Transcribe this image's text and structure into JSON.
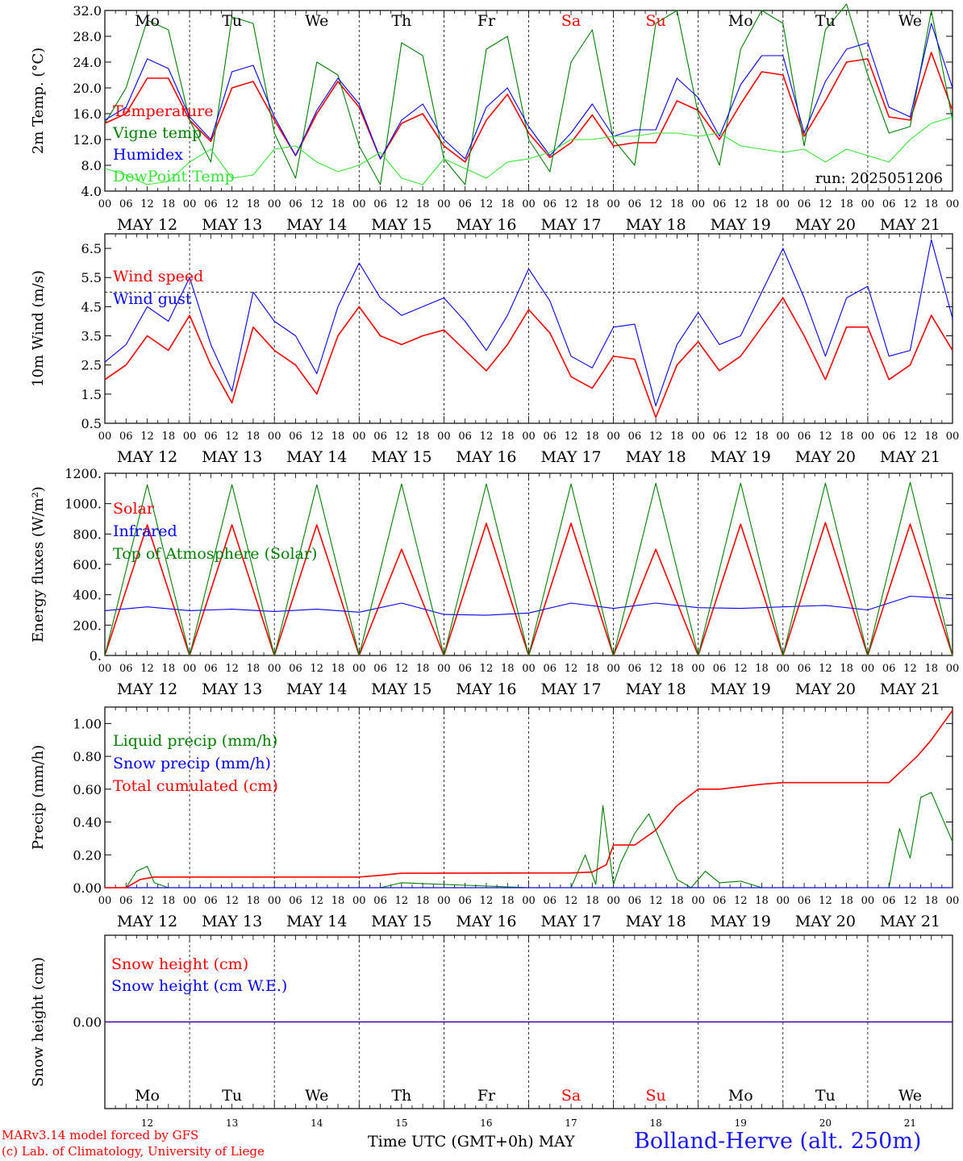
{
  "days": {
    "names": [
      "Mo",
      "Tu",
      "We",
      "Th",
      "Fr",
      "Sa",
      "Su",
      "Mo",
      "Tu",
      "We"
    ],
    "dates": [
      "MAY 12",
      "MAY 13",
      "MAY 14",
      "MAY 15",
      "MAY 16",
      "MAY 17",
      "MAY 18",
      "MAY 19",
      "MAY 20",
      "MAY 21"
    ],
    "numbers": [
      "12",
      "13",
      "14",
      "15",
      "16",
      "17",
      "18",
      "19",
      "20",
      "21"
    ],
    "weekend_color": "#ff0000",
    "weekday_color": "#000000"
  },
  "hour_ticks": [
    "00",
    "06",
    "12",
    "18"
  ],
  "hour_end": "00",
  "footer": {
    "credit_line1": "MARv3.14 model forced by GFS",
    "credit_line2": "(c) Lab. of Climatology, University of Liege",
    "time_label": "Time UTC (GMT+0h) MAY",
    "station": "Bolland-Herve (alt. 250m)"
  },
  "chart_data": [
    {
      "type": "line",
      "ylabel": "2m Temp. (°C)",
      "ylim": [
        4,
        32
      ],
      "yticks": [
        "4.0",
        "8.0",
        "12.0",
        "16.0",
        "20.0",
        "24.0",
        "28.0",
        "32.0"
      ],
      "annotation": "run: 2025051206",
      "x_unit": "hours since MAY 12 00 UTC",
      "series": [
        {
          "name": "Temperature",
          "color": "#ff0000",
          "x": [
            0,
            6,
            12,
            18,
            24,
            30,
            36,
            42,
            48,
            54,
            60,
            66,
            72,
            78,
            84,
            90,
            96,
            102,
            108,
            114,
            120,
            126,
            132,
            138,
            144,
            150,
            156,
            162,
            168,
            174,
            180,
            186,
            192,
            198,
            204,
            210,
            216,
            222,
            228,
            234,
            240
          ],
          "y": [
            14.5,
            16,
            21.5,
            21.5,
            15,
            11.7,
            20,
            21,
            15,
            9.5,
            16,
            21,
            17,
            9,
            14.5,
            16,
            11,
            8.5,
            15,
            19,
            13,
            9.2,
            11.5,
            15.8,
            11,
            11.5,
            11.5,
            18,
            16.5,
            12,
            17.5,
            22.5,
            22,
            12.5,
            18,
            24,
            24.5,
            15.5,
            15,
            25.5,
            16.5
          ]
        },
        {
          "name": "Vigne temp",
          "color": "#008000",
          "x": [
            0,
            6,
            12,
            18,
            24,
            30,
            36,
            42,
            48,
            54,
            60,
            66,
            72,
            78,
            84,
            90,
            96,
            102,
            108,
            114,
            120,
            126,
            132,
            138,
            144,
            150,
            156,
            162,
            168,
            174,
            180,
            186,
            192,
            198,
            204,
            210,
            216,
            222,
            228,
            234,
            240
          ],
          "y": [
            14.5,
            20,
            30.5,
            29,
            15,
            8.5,
            31,
            30,
            13,
            6,
            24,
            22,
            11,
            5,
            27,
            25,
            9,
            5,
            26,
            28,
            12,
            7,
            24,
            29,
            12,
            8,
            30,
            32,
            16,
            8,
            26,
            32,
            30,
            11,
            29,
            33,
            22,
            13,
            14,
            32,
            15
          ]
        },
        {
          "name": "Humidex",
          "color": "#0000ff",
          "x": [
            0,
            6,
            12,
            18,
            24,
            30,
            36,
            42,
            48,
            54,
            60,
            66,
            72,
            78,
            84,
            90,
            96,
            102,
            108,
            114,
            120,
            126,
            132,
            138,
            144,
            150,
            156,
            162,
            168,
            174,
            180,
            186,
            192,
            198,
            204,
            210,
            216,
            222,
            228,
            234,
            240
          ],
          "y": [
            15,
            17,
            24.5,
            23,
            15.5,
            12,
            22.5,
            23.5,
            15.5,
            9.5,
            16.5,
            21.5,
            17.5,
            9,
            15,
            17.5,
            12,
            9,
            17,
            20,
            14,
            9.5,
            13,
            17.5,
            12.5,
            13.5,
            13.5,
            21.5,
            18.5,
            12.5,
            20.5,
            25,
            25,
            13,
            21,
            26,
            27,
            17,
            15.5,
            30,
            20
          ]
        },
        {
          "name": "DewPoint Temp",
          "color": "#33e633",
          "x": [
            0,
            6,
            12,
            18,
            24,
            30,
            36,
            42,
            48,
            54,
            60,
            66,
            72,
            78,
            84,
            90,
            96,
            102,
            108,
            114,
            120,
            126,
            132,
            138,
            144,
            150,
            156,
            162,
            168,
            174,
            180,
            186,
            192,
            198,
            204,
            210,
            216,
            222,
            228,
            234,
            240
          ],
          "y": [
            7.5,
            6.5,
            5,
            5.5,
            8.5,
            10.5,
            6,
            6.5,
            10.5,
            11,
            8.5,
            7,
            8,
            10,
            6,
            5,
            9,
            7.5,
            6,
            8.5,
            9,
            10,
            12,
            12,
            12.5,
            12.5,
            13,
            13,
            12.5,
            13,
            11,
            10.5,
            10,
            10.5,
            8.5,
            10.5,
            9.5,
            8.5,
            12,
            14.5,
            15.5
          ]
        }
      ]
    },
    {
      "type": "line",
      "ylabel": "10m Wind (m/s)",
      "ylim": [
        0.5,
        7
      ],
      "yticks": [
        "0.5",
        "1.5",
        "2.5",
        "3.5",
        "4.5",
        "5.5",
        "6.5"
      ],
      "reference_line": 5,
      "x_unit": "hours since MAY 12 00 UTC",
      "series": [
        {
          "name": "Wind speed",
          "color": "#ff0000",
          "x": [
            0,
            6,
            12,
            18,
            24,
            30,
            36,
            42,
            48,
            54,
            60,
            66,
            72,
            78,
            84,
            90,
            96,
            102,
            108,
            114,
            120,
            126,
            132,
            138,
            144,
            150,
            156,
            162,
            168,
            174,
            180,
            186,
            192,
            198,
            204,
            210,
            216,
            222,
            228,
            234,
            240
          ],
          "y": [
            2,
            2.5,
            3.5,
            3,
            4.2,
            2.5,
            1.2,
            3.8,
            3,
            2.5,
            1.5,
            3.5,
            4.5,
            3.5,
            3.2,
            3.5,
            3.7,
            3,
            2.3,
            3.2,
            4.4,
            3.6,
            2.1,
            1.7,
            2.8,
            2.7,
            0.7,
            2.5,
            3.3,
            2.3,
            2.8,
            3.8,
            4.8,
            3.5,
            2,
            3.8,
            3.8,
            2,
            2.5,
            4.2,
            3
          ]
        },
        {
          "name": "Wind gust",
          "color": "#0000ff",
          "x": [
            0,
            6,
            12,
            18,
            24,
            30,
            36,
            42,
            48,
            54,
            60,
            66,
            72,
            78,
            84,
            90,
            96,
            102,
            108,
            114,
            120,
            126,
            132,
            138,
            144,
            150,
            156,
            162,
            168,
            174,
            180,
            186,
            192,
            198,
            204,
            210,
            216,
            222,
            228,
            234,
            240
          ],
          "y": [
            2.6,
            3.2,
            4.5,
            4,
            5.5,
            3.2,
            1.6,
            5,
            4,
            3.5,
            2.2,
            4.5,
            6,
            4.8,
            4.2,
            4.5,
            4.8,
            4,
            3,
            4.2,
            5.8,
            4.7,
            2.8,
            2.4,
            3.8,
            3.9,
            1.1,
            3.2,
            4.3,
            3.2,
            3.5,
            5,
            6.5,
            4.8,
            2.8,
            4.8,
            5.2,
            2.8,
            3,
            6.8,
            4.1
          ]
        }
      ]
    },
    {
      "type": "line",
      "ylabel": "Energy fluxes (W/m²)",
      "ylim": [
        0,
        1200
      ],
      "yticks": [
        "0.",
        "200.",
        "400.",
        "600.",
        "800.",
        "1000.",
        "1200."
      ],
      "x_unit": "hours since MAY 12 00 UTC",
      "series": [
        {
          "name": "Solar",
          "color": "#ff0000",
          "x": [
            0,
            12,
            24,
            36,
            48,
            60,
            72,
            84,
            96,
            108,
            120,
            132,
            144,
            156,
            168,
            180,
            192,
            204,
            216,
            228,
            240
          ],
          "y": [
            0,
            860,
            0,
            860,
            0,
            860,
            0,
            700,
            0,
            870,
            0,
            870,
            0,
            700,
            0,
            865,
            0,
            875,
            0,
            865,
            0
          ]
        },
        {
          "name": "Infrared",
          "color": "#0000ff",
          "x": [
            0,
            12,
            24,
            36,
            48,
            60,
            72,
            84,
            96,
            108,
            120,
            132,
            144,
            156,
            168,
            180,
            192,
            204,
            216,
            228,
            240
          ],
          "y": [
            295,
            320,
            295,
            305,
            290,
            305,
            285,
            345,
            270,
            265,
            280,
            345,
            310,
            345,
            315,
            310,
            320,
            330,
            300,
            390,
            375
          ]
        },
        {
          "name": "Top of Atmosphere (Solar)",
          "color": "#008000",
          "x": [
            0,
            12,
            24,
            36,
            48,
            60,
            72,
            84,
            96,
            108,
            120,
            132,
            144,
            156,
            168,
            180,
            192,
            204,
            216,
            228,
            240
          ],
          "y": [
            0,
            1125,
            0,
            1125,
            0,
            1125,
            0,
            1130,
            0,
            1130,
            0,
            1130,
            0,
            1135,
            0,
            1135,
            0,
            1135,
            0,
            1140,
            0
          ]
        }
      ]
    },
    {
      "type": "line",
      "ylabel": "Precip (mm/h)",
      "ylim": [
        0,
        1.1
      ],
      "yticks": [
        "0.00",
        "0.20",
        "0.40",
        "0.60",
        "0.80",
        "1.00"
      ],
      "x_unit": "hours since MAY 12 00 UTC",
      "series": [
        {
          "name": "Liquid precip (mm/h)",
          "color": "#008000",
          "x": [
            0,
            6,
            9,
            12,
            14,
            18,
            24,
            72,
            78,
            84,
            120,
            126,
            132,
            136,
            139,
            141,
            144,
            146,
            150,
            154,
            158,
            162,
            166,
            170,
            174,
            180,
            186,
            192,
            198,
            216,
            222,
            225,
            228,
            231,
            234,
            240
          ],
          "y": [
            0,
            0,
            0.1,
            0.13,
            0.03,
            0,
            0,
            0,
            0,
            0.03,
            0,
            0,
            0,
            0.2,
            0.02,
            0.5,
            0.02,
            0.15,
            0.33,
            0.45,
            0.25,
            0.05,
            0,
            0.1,
            0.03,
            0.04,
            0,
            0,
            0,
            0,
            0,
            0.36,
            0.18,
            0.55,
            0.58,
            0.28
          ]
        },
        {
          "name": "Snow precip (mm/h)",
          "color": "#0000ff",
          "x": [
            0,
            240
          ],
          "y": [
            0,
            0
          ]
        },
        {
          "name": "Total cumulated (cm)",
          "color": "#ff0000",
          "x": [
            0,
            6,
            10,
            14,
            24,
            72,
            78,
            84,
            132,
            138,
            142,
            144,
            150,
            156,
            162,
            168,
            174,
            186,
            192,
            210,
            216,
            222,
            226,
            230,
            234,
            240
          ],
          "y": [
            0,
            0,
            0.05,
            0.065,
            0.065,
            0.065,
            0.075,
            0.088,
            0.09,
            0.095,
            0.14,
            0.26,
            0.26,
            0.35,
            0.5,
            0.6,
            0.6,
            0.63,
            0.64,
            0.64,
            0.64,
            0.64,
            0.72,
            0.8,
            0.9,
            1.08
          ]
        }
      ]
    },
    {
      "type": "line",
      "ylabel": "Snow height (cm)",
      "ylim": [
        -1,
        1
      ],
      "yticks": [
        "0.00"
      ],
      "x_unit": "hours since MAY 12 00 UTC",
      "series": [
        {
          "name": "Snow height (cm)",
          "color": "#ff0000",
          "x": [
            0,
            240
          ],
          "y": [
            0,
            0
          ]
        },
        {
          "name": "Snow height (cm W.E.)",
          "color": "#0000ff",
          "x": [
            0,
            240
          ],
          "y": [
            0,
            0
          ]
        }
      ]
    }
  ]
}
